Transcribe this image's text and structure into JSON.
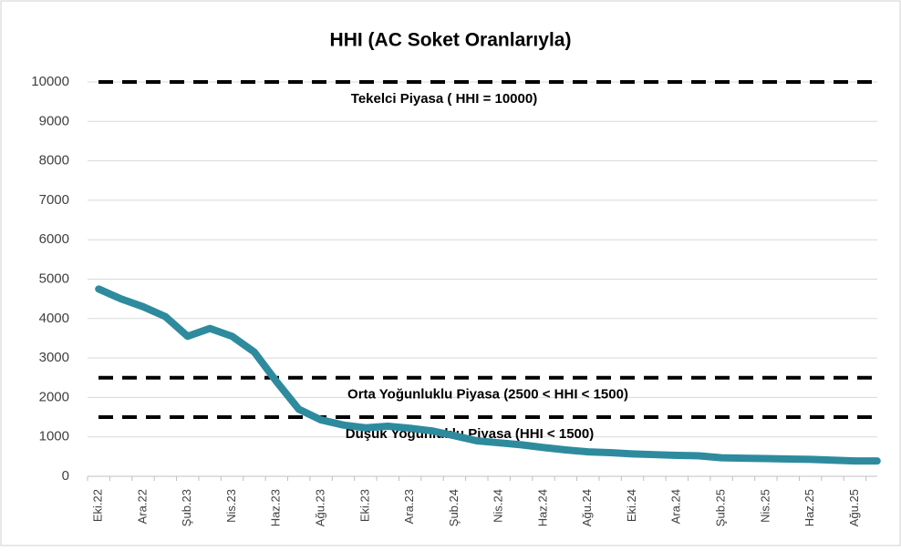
{
  "chart_data": {
    "type": "line",
    "title": "HHI (AC Soket Oranlarıyla)",
    "categories": [
      "Eki.22",
      null,
      "Ara.22",
      null,
      "Şub.23",
      null,
      "Nis.23",
      null,
      "Haz.23",
      null,
      "Ağu.23",
      null,
      "Eki.23",
      null,
      "Ara.23",
      null,
      "Şub.24",
      null,
      "Nis.24",
      null,
      "Haz.24",
      null,
      "Ağu.24",
      null,
      "Eki.24",
      null,
      "Ara.24",
      null,
      "Şub.25",
      null,
      "Nis.25",
      null,
      "Haz.25",
      null,
      "Ağu.25",
      null
    ],
    "series": [
      {
        "name": "HHI",
        "color": "#2e8b9e",
        "values": [
          4750,
          4500,
          4300,
          4050,
          3550,
          3750,
          3550,
          3150,
          2400,
          1700,
          1430,
          1300,
          1230,
          1270,
          1220,
          1150,
          1030,
          900,
          850,
          800,
          730,
          670,
          620,
          600,
          570,
          550,
          530,
          520,
          470,
          460,
          450,
          440,
          430,
          410,
          390,
          390
        ]
      }
    ],
    "ylim": [
      0,
      10000
    ],
    "yticks": [
      0,
      1000,
      2000,
      3000,
      4000,
      5000,
      6000,
      7000,
      8000,
      9000,
      10000
    ],
    "grid": true,
    "reference_lines": [
      {
        "value": 10000,
        "label": "Tekelci Piyasa ( HHI = 10000)"
      },
      {
        "value": 2500,
        "label": "Orta Yoğunluklu Piyasa (2500 < HHI < 1500)"
      },
      {
        "value": 1500,
        "label": "Düşük Yoğunluklu Piyasa (HHI < 1500)"
      }
    ]
  }
}
